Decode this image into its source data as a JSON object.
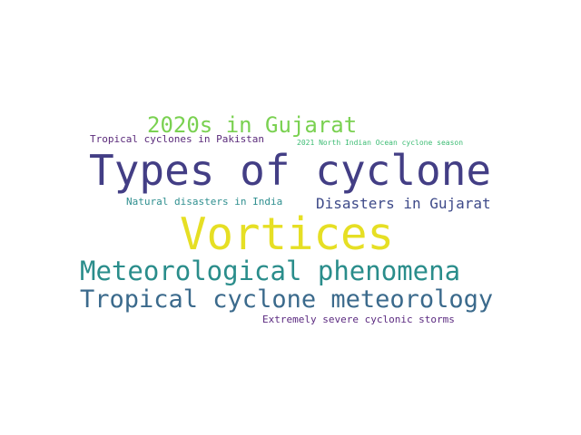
{
  "words": [
    {
      "text": "Types of cyclone",
      "color": "#433e85"
    },
    {
      "text": "Vortices",
      "color": "#e6df24"
    },
    {
      "text": "Meteorological phenomena",
      "color": "#2a8d8b"
    },
    {
      "text": "Tropical cyclone meteorology",
      "color": "#3b6a8c"
    },
    {
      "text": "2020s in Gujarat",
      "color": "#7ad151"
    },
    {
      "text": "Disasters in Gujarat",
      "color": "#3e4a89"
    },
    {
      "text": "Tropical cyclones in Pakistan",
      "color": "#5a2a7a"
    },
    {
      "text": "Natural disasters in India",
      "color": "#2f8f8f"
    },
    {
      "text": "Extremely severe cyclonic storms",
      "color": "#5b2a80"
    },
    {
      "text": "2021 North Indian Ocean cyclone season",
      "color": "#3dbc74"
    }
  ]
}
